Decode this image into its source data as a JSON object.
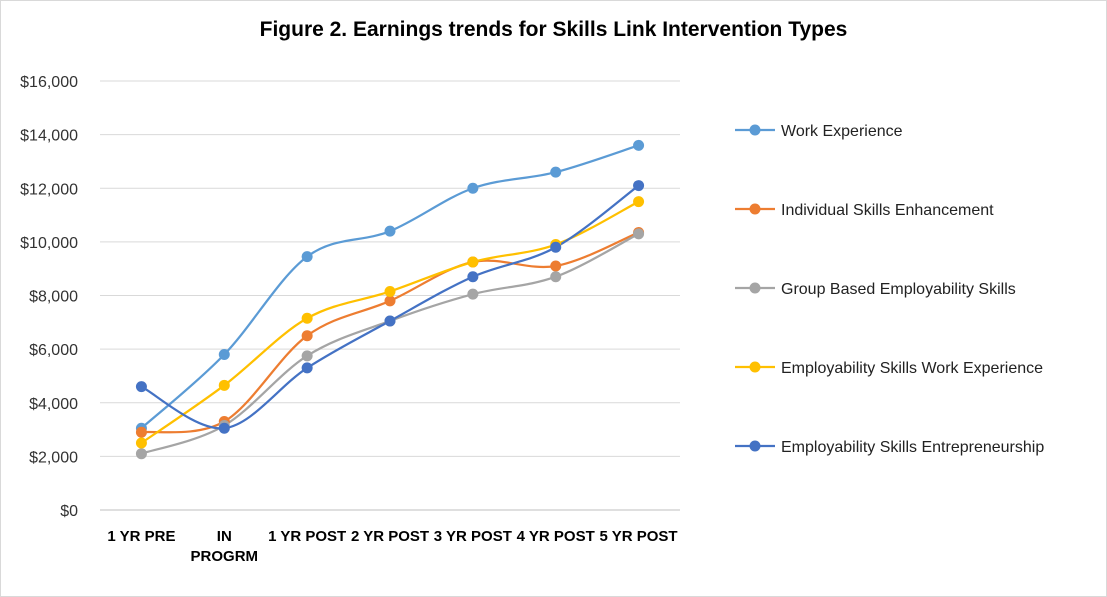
{
  "chart_data": {
    "type": "line",
    "title": "Figure 2. Earnings trends for Skills Link Intervention Types",
    "xlabel": "",
    "ylabel": "",
    "categories": [
      [
        "1 YR PRE"
      ],
      [
        "IN",
        "PROGRM"
      ],
      [
        "1 YR POST"
      ],
      [
        "2 YR POST"
      ],
      [
        "3 YR POST"
      ],
      [
        "4 YR POST"
      ],
      [
        "5 YR POST"
      ]
    ],
    "ylim": [
      0,
      16000
    ],
    "yticks": [
      "$0",
      "$2,000",
      "$4,000",
      "$6,000",
      "$8,000",
      "$10,000",
      "$12,000",
      "$14,000",
      "$16,000"
    ],
    "grid": true,
    "legend_position": "right",
    "smooth": true,
    "series": [
      {
        "name": "Work Experience",
        "color": "#5b9bd5",
        "values": [
          3050,
          5800,
          9450,
          10400,
          12000,
          12600,
          13600
        ]
      },
      {
        "name": "Individual Skills Enhancement",
        "color": "#ed7d31",
        "values": [
          2900,
          3300,
          6500,
          7800,
          9250,
          9100,
          10350
        ]
      },
      {
        "name": "Group Based Employability Skills",
        "color": "#a5a5a5",
        "values": [
          2100,
          3150,
          5750,
          7050,
          8050,
          8700,
          10300
        ]
      },
      {
        "name": "Employability Skills Work Experience",
        "color": "#ffc000",
        "values": [
          2500,
          4650,
          7150,
          8150,
          9250,
          9900,
          11500
        ]
      },
      {
        "name": "Employability Skills Entrepreneurship",
        "color": "#4472c4",
        "values": [
          4600,
          3050,
          5300,
          7050,
          8700,
          9800,
          12100
        ]
      }
    ]
  }
}
